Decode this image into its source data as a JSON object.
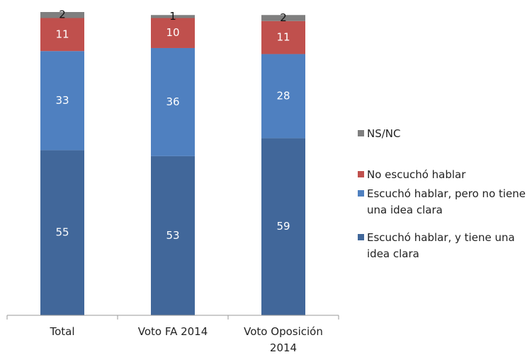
{
  "chart_data": {
    "type": "stacked_bar",
    "categories": [
      "Total",
      "Voto FA 2014",
      "Voto Oposición 2014"
    ],
    "series": [
      {
        "name": "Escuchó hablar, y tiene una idea clara",
        "color": "#41679a",
        "label_color": "#ffffff",
        "values": [
          55,
          53,
          59
        ]
      },
      {
        "name": "Escuchó hablar, pero no tiene una idea clara",
        "color": "#4f80c0",
        "label_color": "#ffffff",
        "values": [
          33,
          36,
          28
        ]
      },
      {
        "name": "No escuchó hablar",
        "color": "#c0504d",
        "label_color": "#ffffff",
        "values": [
          11,
          10,
          11
        ]
      },
      {
        "name": "NS/NC",
        "color": "#7f7f7f",
        "label_color": "#111111",
        "values": [
          2,
          1,
          2
        ]
      }
    ],
    "ylim": [
      0,
      101
    ],
    "legend": "right"
  }
}
